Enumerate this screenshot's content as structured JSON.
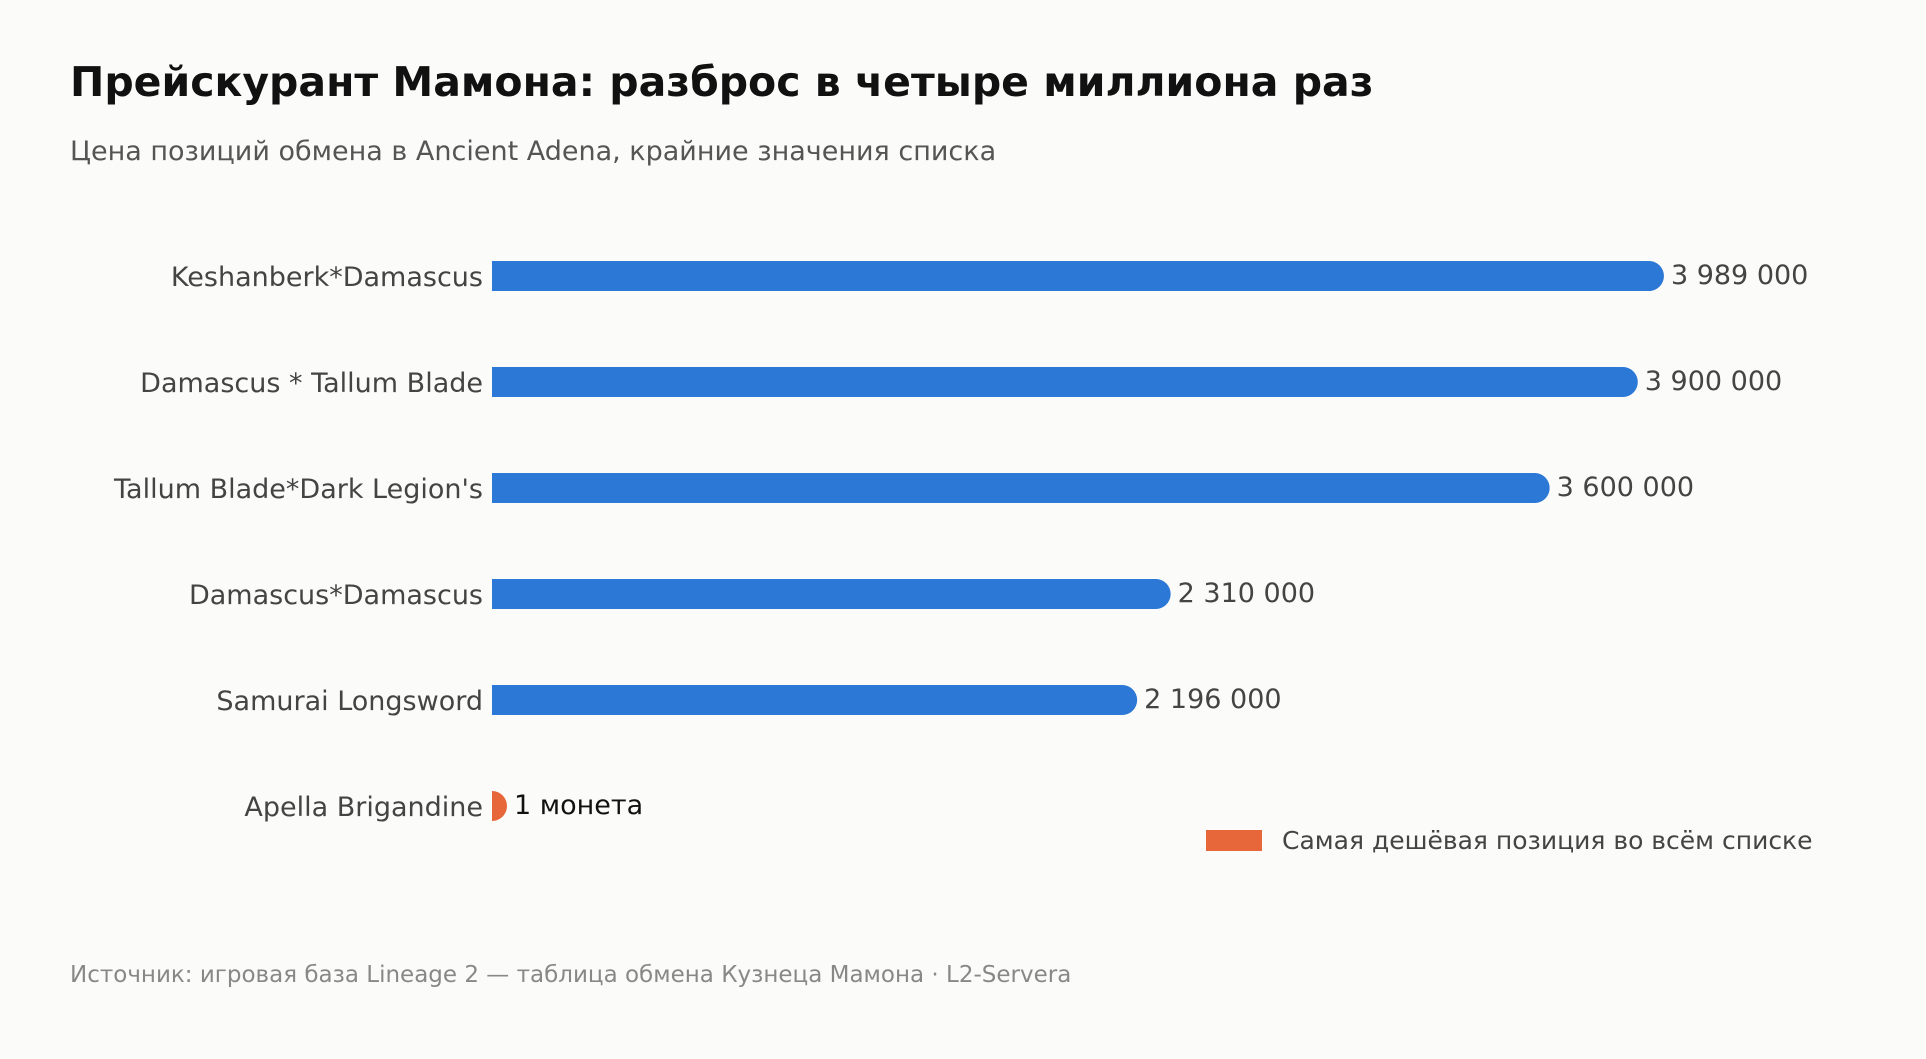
{
  "title": "Прейскурант Мамона: разброс в четыре миллиона раз",
  "subtitle": "Цена позиций обмена в Ancient Adena, крайние значения списка",
  "source": "Источник: игровая база Lineage 2 — таблица обмена Кузнеца Мамона · L2-Servera",
  "legend": {
    "label": "Самая дешёвая позиция во всём списке",
    "color": "#e8673a"
  },
  "colors": {
    "bar": "#2b78d6",
    "highlight": "#e8673a",
    "category_text": "#444444",
    "value_text": "#444444",
    "highlight_value_text": "#111111"
  },
  "chart_data": {
    "type": "bar",
    "orientation": "horizontal",
    "categories": [
      "Keshanberk*Damascus",
      "Damascus * Tallum Blade",
      "Tallum Blade*Dark Legion's",
      "Damascus*Damascus",
      "Samurai Longsword",
      "Apella Brigandine"
    ],
    "values": [
      3989000,
      3900000,
      3600000,
      2310000,
      2196000,
      1
    ],
    "value_labels": [
      "3 989 000",
      "3 900 000",
      "3 600 000",
      "2 310 000",
      "2 196 000",
      "1 монета"
    ],
    "highlight": [
      false,
      false,
      false,
      false,
      false,
      true
    ],
    "xlim": [
      0,
      4350000
    ],
    "grid": false,
    "legend_position": "lower-right"
  }
}
